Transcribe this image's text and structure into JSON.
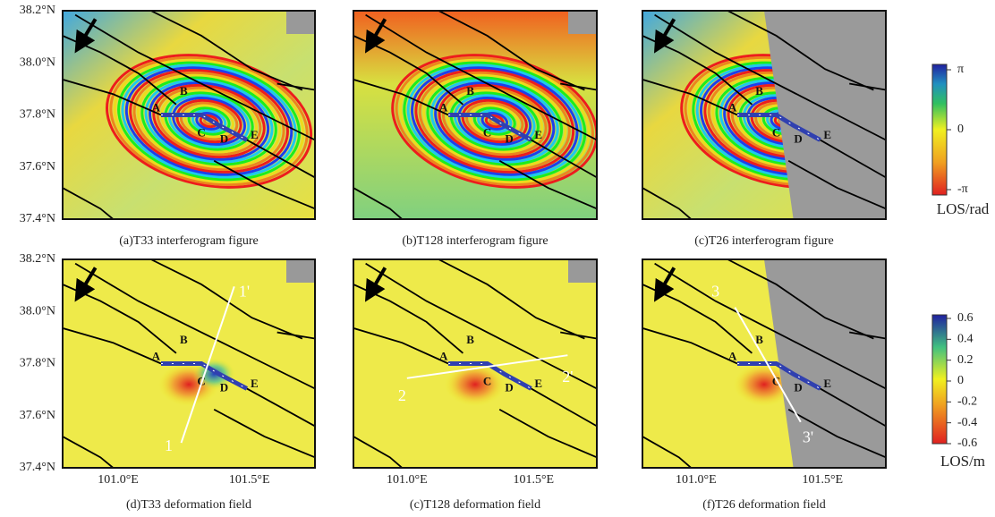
{
  "axis_labels": {
    "lat": [
      "38.2°N",
      "38.0°N",
      "37.8°N",
      "37.6°N",
      "37.4°N"
    ],
    "lon": [
      "101.0°E",
      "101.5°E"
    ]
  },
  "fault_points": [
    "A",
    "B",
    "C",
    "D",
    "E"
  ],
  "panels": [
    {
      "caption": "(a)T33 interferogram figure"
    },
    {
      "caption": "(b)T128 interferogram figure"
    },
    {
      "caption": "(c)T26 interferogram figure"
    },
    {
      "caption": "(d)T33 deformation field",
      "profile": [
        "1",
        "1'"
      ]
    },
    {
      "caption": "(c)T128 deformation field",
      "profile": [
        "2",
        "2'"
      ]
    },
    {
      "caption": "(f)T26 deformation field",
      "profile": [
        "3",
        "3'"
      ]
    }
  ],
  "colorbars": [
    {
      "ticks": [
        "π",
        "0",
        "-π"
      ],
      "unit": "LOS/rad"
    },
    {
      "ticks": [
        "0.6",
        "0.4",
        "0.2",
        "0",
        "-0.2",
        "-0.4",
        "-0.6"
      ],
      "unit": "LOS/m"
    }
  ]
}
